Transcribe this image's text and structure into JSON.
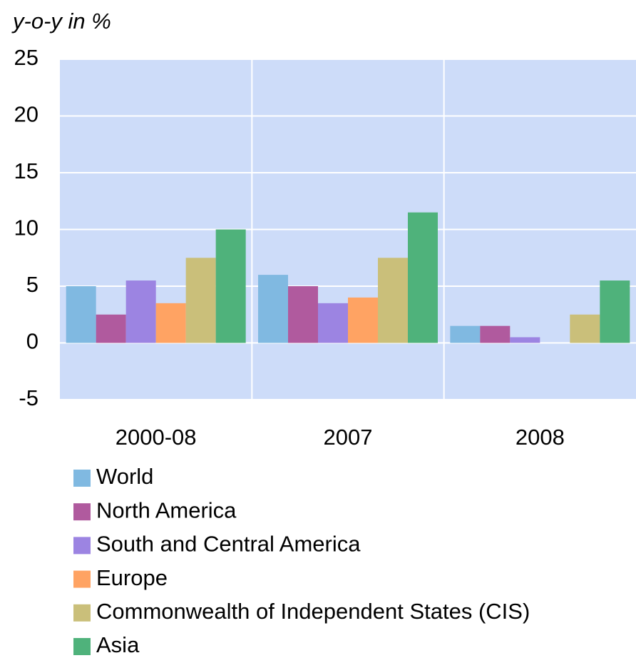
{
  "chart_data": {
    "type": "bar",
    "y_label": "y-o-y in %",
    "categories": [
      "2000-08",
      "2007",
      "2008"
    ],
    "series": [
      {
        "name": "World",
        "color": "#80b9e1",
        "values": [
          5,
          6,
          1.5
        ]
      },
      {
        "name": "North America",
        "color": "#b05a9e",
        "values": [
          2.5,
          5,
          1.5
        ]
      },
      {
        "name": "South and Central America",
        "color": "#9c84e2",
        "values": [
          5.5,
          3.5,
          0.5
        ]
      },
      {
        "name": "Europe",
        "color": "#ffa363",
        "values": [
          3.5,
          4,
          0
        ]
      },
      {
        "name": "Commonwealth of Independent States (CIS)",
        "color": "#cabf7a",
        "values": [
          7.5,
          7.5,
          2.5
        ]
      },
      {
        "name": "Asia",
        "color": "#4fb27b",
        "values": [
          10,
          11.5,
          5.5
        ]
      }
    ],
    "ylim": [
      -5,
      25
    ],
    "yticks": [
      -5,
      0,
      5,
      10,
      15,
      20,
      25
    ],
    "grid": true,
    "background": "#cddcf9",
    "legend": "bottom"
  }
}
